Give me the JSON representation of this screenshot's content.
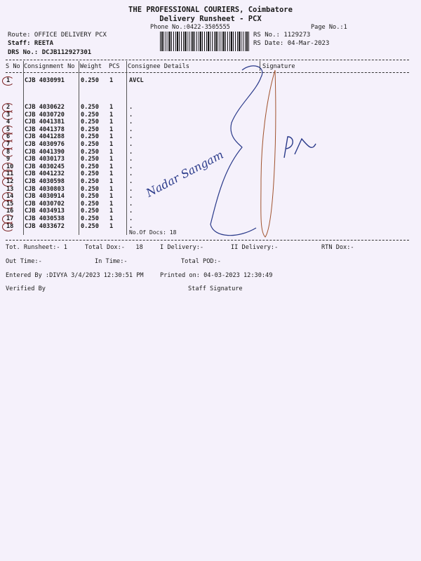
{
  "header": {
    "company": "THE PROFESSIONAL COURIERS, Coimbatore",
    "title": "Delivery Runsheet - PCX",
    "phone": "Phone No.:0422-3505555",
    "page_no": "Page No.:1",
    "route": "Route: OFFICE DELIVERY PCX",
    "staff": "Staff: REETA",
    "drs_no": "DRS No.: DCJB112927301",
    "rs_no": "RS No.: 1129273",
    "rs_date": "RS Date: 04-Mar-2023"
  },
  "table": {
    "columns": [
      "S No",
      "Consignment No",
      "Weight",
      "PCS",
      "Consignee Details",
      "Signature"
    ],
    "rows": [
      {
        "sno": "1",
        "cn": "CJB 4030991",
        "weight": "0.250",
        "pcs": "1",
        "details": "AVCL"
      },
      {
        "sno": "2",
        "cn": "CJB 4030622",
        "weight": "0.250",
        "pcs": "1",
        "details": "."
      },
      {
        "sno": "3",
        "cn": "CJB 4030720",
        "weight": "0.250",
        "pcs": "1",
        "details": "."
      },
      {
        "sno": "4",
        "cn": "CJB 4041381",
        "weight": "0.250",
        "pcs": "1",
        "details": "."
      },
      {
        "sno": "5",
        "cn": "CJB 4041378",
        "weight": "0.250",
        "pcs": "1",
        "details": "."
      },
      {
        "sno": "6",
        "cn": "CJB 4041288",
        "weight": "0.250",
        "pcs": "1",
        "details": "."
      },
      {
        "sno": "7",
        "cn": "CJB 4030976",
        "weight": "0.250",
        "pcs": "1",
        "details": "."
      },
      {
        "sno": "8",
        "cn": "CJB 4041390",
        "weight": "0.250",
        "pcs": "1",
        "details": "."
      },
      {
        "sno": "9",
        "cn": "CJB 4030173",
        "weight": "0.250",
        "pcs": "1",
        "details": "."
      },
      {
        "sno": "10",
        "cn": "CJB 4030245",
        "weight": "0.250",
        "pcs": "1",
        "details": "."
      },
      {
        "sno": "11",
        "cn": "CJB 4041232",
        "weight": "0.250",
        "pcs": "1",
        "details": "."
      },
      {
        "sno": "12",
        "cn": "CJB 4030598",
        "weight": "0.250",
        "pcs": "1",
        "details": "."
      },
      {
        "sno": "13",
        "cn": "CJB 4030803",
        "weight": "0.250",
        "pcs": "1",
        "details": "."
      },
      {
        "sno": "14",
        "cn": "CJB 4030914",
        "weight": "0.250",
        "pcs": "1",
        "details": "."
      },
      {
        "sno": "15",
        "cn": "CJB 4030702",
        "weight": "0.250",
        "pcs": "1",
        "details": "."
      },
      {
        "sno": "16",
        "cn": "CJB 4034913",
        "weight": "0.250",
        "pcs": "1",
        "details": "."
      },
      {
        "sno": "17",
        "cn": "CJB 4030538",
        "weight": "0.250",
        "pcs": "1",
        "details": "."
      },
      {
        "sno": "18",
        "cn": "CJB 4033672",
        "weight": "0.250",
        "pcs": "1",
        "details": "."
      }
    ],
    "no_of_docs": "No.Of Docs: 18"
  },
  "handwriting": {
    "note": "Nadar Sangam",
    "initials": "P R"
  },
  "footer": {
    "tot_runsheet": "Tot. Runsheet:- 1",
    "total_dox": "Total Dox:-   18",
    "i_delivery": "I Delivery:-",
    "ii_delivery": "II Delivery:-",
    "rtn_dox": "RTN Dox:-",
    "out_time": "Out Time:-",
    "in_time": "In Time:-",
    "total_pod": "Total POD:-",
    "entered_by": "Entered By :DIVYA 3/4/2023 12:30:51 PM",
    "printed_on": "Printed on: 04-03-2023 12:30:49",
    "verified_by": "Verified By",
    "staff_signature": "Staff Signature"
  },
  "colors": {
    "paper": "#f5f1fb",
    "ink": "#1a1a1a",
    "pen_blue": "#2a3a8a",
    "pen_brown": "#a0522d"
  }
}
